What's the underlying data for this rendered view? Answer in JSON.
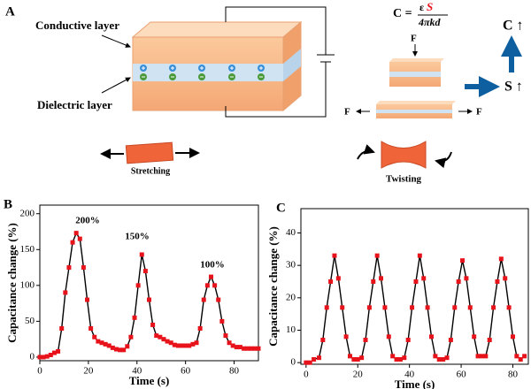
{
  "panel_labels": [
    "A",
    "B",
    "C"
  ],
  "diagram": {
    "conductive_label": "Conductive layer",
    "dielectric_label": "Dielectric layer",
    "stretching_label": "Stretching",
    "twisting_label": "Twisting",
    "formula": {
      "lhs": "C =",
      "epsilon": "ε",
      "area": "S",
      "denominator": "4πkd"
    },
    "force_labels": [
      "F",
      "F",
      "F"
    ],
    "result_c": "C ↑",
    "result_s": "S ↑"
  },
  "chart_data": [
    {
      "type": "line",
      "xlabel": "Time (s)",
      "ylabel": "Capacitance change (%)",
      "xlim": [
        0,
        90
      ],
      "xticks": [
        0,
        20,
        40,
        60,
        80
      ],
      "ylim": [
        -5,
        212
      ],
      "yticks": [
        0,
        50,
        100,
        150,
        200
      ],
      "annotations": [
        "200%",
        "150%",
        "100%"
      ],
      "series": [
        {
          "color": "#e8121b",
          "x": [
            0,
            1.5,
            3,
            4.5,
            6,
            7.5,
            9,
            10.5,
            12,
            13.5,
            15,
            16.5,
            18,
            19.5,
            21,
            22.5,
            24,
            25.5,
            27,
            28.5,
            30,
            31.5,
            33,
            34.5,
            36,
            37.5,
            39,
            40.5,
            42,
            43.5,
            45,
            46.5,
            48,
            49.5,
            51,
            52.5,
            54,
            55.5,
            57,
            58.5,
            60,
            61.5,
            63,
            64.5,
            66,
            67.5,
            69,
            70.5,
            72,
            73.5,
            75,
            76.5,
            78,
            79.5,
            81,
            82.5,
            84,
            85.5,
            87,
            88.5,
            90
          ],
          "values": [
            0,
            0,
            1,
            3,
            6,
            8,
            40,
            90,
            125,
            160,
            173,
            165,
            125,
            80,
            40,
            28,
            22,
            20,
            18,
            16,
            13,
            11,
            10,
            10,
            15,
            28,
            55,
            100,
            143,
            120,
            80,
            45,
            30,
            28,
            25,
            22,
            20,
            17,
            16,
            16,
            16,
            16,
            18,
            20,
            40,
            80,
            100,
            112,
            100,
            80,
            50,
            30,
            20,
            16,
            14,
            14,
            12,
            12,
            12,
            12,
            12
          ]
        }
      ]
    },
    {
      "type": "line",
      "xlabel": "Time (s)",
      "ylabel": "Capacitance change (%)",
      "xlim": [
        -2,
        86
      ],
      "xticks": [
        0,
        20,
        40,
        60,
        80
      ],
      "ylim": [
        -0.5,
        47.5
      ],
      "yticks": [
        0,
        10,
        20,
        30,
        40
      ],
      "series": [
        {
          "color": "#e8121b",
          "x": [
            0,
            1.5,
            3,
            5,
            6.5,
            8,
            9.5,
            11,
            12.5,
            14,
            15.5,
            17,
            18.5,
            20,
            21.5,
            23,
            24.5,
            26,
            27.5,
            29,
            30.5,
            32,
            33.5,
            35,
            36.5,
            38,
            39.5,
            41,
            42.5,
            44,
            45.5,
            47,
            48.5,
            50,
            51.5,
            53,
            54.5,
            56,
            57.5,
            59,
            60.5,
            62,
            63.5,
            65,
            66.5,
            68,
            69.5,
            71,
            72.5,
            74,
            75.5,
            77,
            78.5,
            80,
            81.5,
            83,
            84.5
          ],
          "values": [
            0,
            0,
            1,
            1.5,
            7,
            17,
            25,
            33,
            26,
            17,
            8,
            2,
            1,
            1,
            1.5,
            7,
            17,
            25,
            33,
            26,
            17,
            8,
            2,
            1,
            1,
            1.5,
            7,
            17,
            25,
            33,
            26,
            17,
            8,
            2,
            1,
            1,
            1.5,
            7,
            17,
            25,
            31.5,
            26,
            17,
            8,
            2,
            2,
            2,
            7,
            17,
            25,
            32,
            26,
            17,
            8,
            2,
            1,
            2
          ]
        }
      ]
    }
  ]
}
